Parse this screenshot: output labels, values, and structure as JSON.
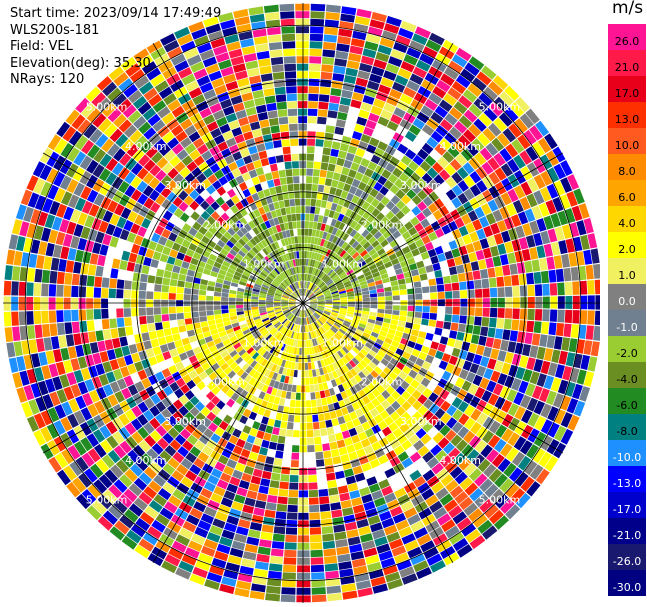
{
  "header": {
    "start_time": "Start time: 2023/09/14 17:49:49",
    "instrument": "WLS200s-181",
    "field": "Field: VEL",
    "elevation": "Elevation(deg): 35.30",
    "nrays": "NRays: 120"
  },
  "chart_data": {
    "type": "heatmap",
    "projection": "polar-ppi",
    "field": "VEL",
    "units": "m/s",
    "nrays": 120,
    "elevation_deg": 35.3,
    "grid": true,
    "range_ring_labels": [
      "1.00km",
      "2.00km",
      "3.00km",
      "4.00km",
      "5.00km"
    ],
    "colorbar": {
      "title": "m/s",
      "tick_labels": [
        "26.0",
        "21.0",
        "17.0",
        "13.0",
        "10.0",
        "8.0",
        "6.0",
        "4.0",
        "2.0",
        "1.0",
        "0.0",
        "-1.0",
        "-2.0",
        "-4.0",
        "-6.0",
        "-8.0",
        "-10.0",
        "-13.0",
        "-17.0",
        "-21.0",
        "-26.0",
        "-30.0"
      ],
      "colors": [
        "#ff1493",
        "#ff1a4a",
        "#e8001a",
        "#ff3000",
        "#ff5a1f",
        "#ff8c00",
        "#ffa500",
        "#ffd700",
        "#ffff00",
        "#f0f060",
        "#808080",
        "#708090",
        "#9acd32",
        "#6b8e23",
        "#228b22",
        "#008080",
        "#1e90ff",
        "#0000ff",
        "#0000cd",
        "#00008b",
        "#191970",
        "#000080"
      ]
    }
  }
}
